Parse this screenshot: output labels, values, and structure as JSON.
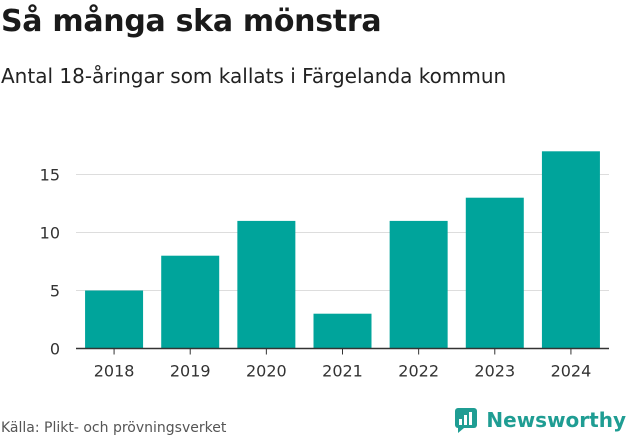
{
  "header": {
    "title": "Så många ska mönstra",
    "subtitle": "Antal 18-åringar som kallats i Färgelanda kommun"
  },
  "chart_data": {
    "type": "bar",
    "title": "Så många ska mönstra",
    "subtitle": "Antal 18-åringar som kallats i Färgelanda kommun",
    "categories": [
      "2018",
      "2019",
      "2020",
      "2021",
      "2022",
      "2023",
      "2024"
    ],
    "values": [
      5,
      8,
      11,
      3,
      11,
      13,
      17
    ],
    "yticks": [
      "0",
      "5",
      "10",
      "15"
    ],
    "ylim": [
      0,
      18
    ],
    "xlabel": "",
    "ylabel": "",
    "grid": true,
    "bar_color": "#00a49b"
  },
  "footer": {
    "source": "Källa: Plikt- och prövningsverket",
    "brand": "Newsworthy",
    "brand_icon": "newsworthy-logo-icon",
    "brand_color": "#1f9d93"
  }
}
